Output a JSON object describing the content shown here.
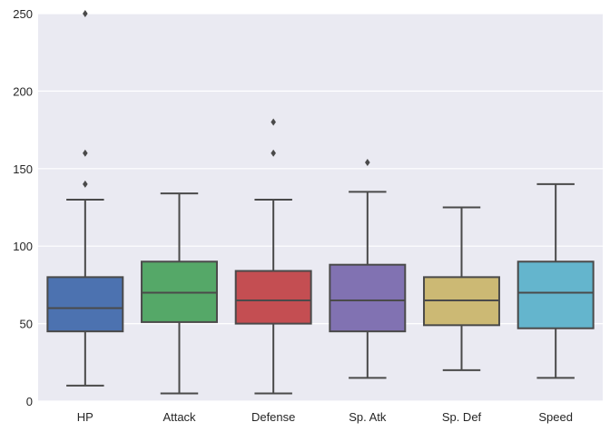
{
  "chart_data": {
    "type": "box",
    "title": "",
    "xlabel": "",
    "ylabel": "",
    "ylim": [
      0,
      250
    ],
    "yticks": [
      0,
      50,
      100,
      150,
      200,
      250
    ],
    "ytick_labels": [
      "0",
      "50",
      "100",
      "150",
      "200",
      "250"
    ],
    "grid": true,
    "background": "#eaeaf2",
    "grid_color": "#ffffff",
    "line_color": "#4a4a4a",
    "categories": [
      "HP",
      "Attack",
      "Defense",
      "Sp. Atk",
      "Sp. Def",
      "Speed"
    ],
    "boxes": [
      {
        "name": "HP",
        "whisker_low": 10,
        "q1": 45,
        "median": 60,
        "q3": 80,
        "whisker_high": 130,
        "outliers": [
          140,
          160,
          250
        ],
        "color": "#4c72b0"
      },
      {
        "name": "Attack",
        "whisker_low": 5,
        "q1": 51,
        "median": 70,
        "q3": 90,
        "whisker_high": 134,
        "outliers": [],
        "color": "#55a868"
      },
      {
        "name": "Defense",
        "whisker_low": 5,
        "q1": 50,
        "median": 65,
        "q3": 84,
        "whisker_high": 130,
        "outliers": [
          160,
          180
        ],
        "color": "#c44e52"
      },
      {
        "name": "Sp. Atk",
        "whisker_low": 15,
        "q1": 45,
        "median": 65,
        "q3": 88,
        "whisker_high": 135,
        "outliers": [
          154
        ],
        "color": "#8172b2"
      },
      {
        "name": "Sp. Def",
        "whisker_low": 20,
        "q1": 49,
        "median": 65,
        "q3": 80,
        "whisker_high": 125,
        "outliers": [],
        "color": "#ccb974"
      },
      {
        "name": "Speed",
        "whisker_low": 15,
        "q1": 47,
        "median": 70,
        "q3": 90,
        "whisker_high": 140,
        "outliers": [],
        "color": "#64b5cd"
      }
    ]
  }
}
